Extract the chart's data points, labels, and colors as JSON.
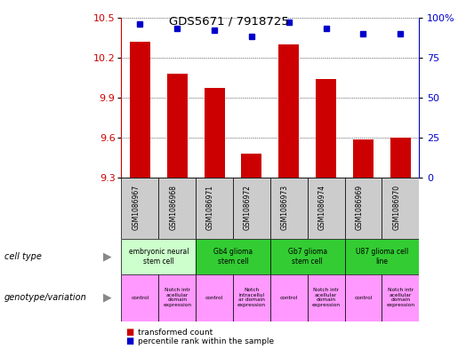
{
  "title": "GDS5671 / 7918725",
  "samples": [
    "GSM1086967",
    "GSM1086968",
    "GSM1086971",
    "GSM1086972",
    "GSM1086973",
    "GSM1086974",
    "GSM1086969",
    "GSM1086970"
  ],
  "transformed_counts": [
    10.32,
    10.08,
    9.97,
    9.48,
    10.3,
    10.04,
    9.59,
    9.6
  ],
  "percentile_ranks": [
    96,
    93,
    92,
    88,
    97,
    93,
    90,
    90
  ],
  "ylim_left": [
    9.3,
    10.5
  ],
  "yticks_left": [
    9.3,
    9.6,
    9.9,
    10.2,
    10.5
  ],
  "ylim_right": [
    0,
    100
  ],
  "yticks_right": [
    0,
    25,
    50,
    75,
    100
  ],
  "ytick_right_labels": [
    "0",
    "25",
    "50",
    "75",
    "100%"
  ],
  "bar_color": "#cc0000",
  "dot_color": "#0000cc",
  "cell_types": [
    {
      "label": "embryonic neural\nstem cell",
      "start": 0,
      "end": 2,
      "color": "#ccffcc"
    },
    {
      "label": "Gb4 glioma\nstem cell",
      "start": 2,
      "end": 4,
      "color": "#33cc33"
    },
    {
      "label": "Gb7 glioma\nstem cell",
      "start": 4,
      "end": 6,
      "color": "#33cc33"
    },
    {
      "label": "U87 glioma cell\nline",
      "start": 6,
      "end": 8,
      "color": "#33cc33"
    }
  ],
  "genotypes": [
    {
      "label": "control",
      "start": 0,
      "end": 1,
      "color": "#ff99ff"
    },
    {
      "label": "Notch intr\nacellular\ndomain\nexpression",
      "start": 1,
      "end": 2,
      "color": "#ff99ff"
    },
    {
      "label": "control",
      "start": 2,
      "end": 3,
      "color": "#ff99ff"
    },
    {
      "label": "Notch\nintracellul\nar domain\nexpression",
      "start": 3,
      "end": 4,
      "color": "#ff99ff"
    },
    {
      "label": "control",
      "start": 4,
      "end": 5,
      "color": "#ff99ff"
    },
    {
      "label": "Notch intr\nacellular\ndomain\nexpression",
      "start": 5,
      "end": 6,
      "color": "#ff99ff"
    },
    {
      "label": "control",
      "start": 6,
      "end": 7,
      "color": "#ff99ff"
    },
    {
      "label": "Notch intr\nacellular\ndomain\nexpression",
      "start": 7,
      "end": 8,
      "color": "#ff99ff"
    }
  ],
  "background_color": "#ffffff",
  "tick_label_color_left": "#cc0000",
  "tick_label_color_right": "#0000cc",
  "gsm_row_color": "#cccccc",
  "legend_items": [
    {
      "color": "#cc0000",
      "label": "transformed count"
    },
    {
      "color": "#0000cc",
      "label": "percentile rank within the sample"
    }
  ]
}
